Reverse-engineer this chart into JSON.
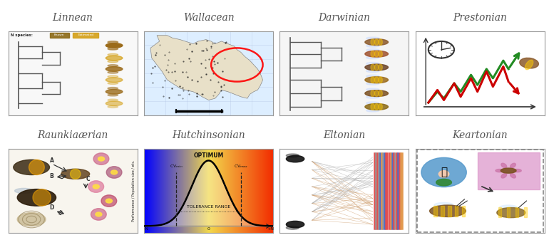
{
  "titles_top": [
    "Linnean",
    "Wallacean",
    "Darwinian",
    "Prestonian"
  ],
  "titles_bottom": [
    "Raunkiaærian",
    "Hutchinsonian",
    "Eltonian",
    "Keartonian"
  ],
  "bg_color": "#ffffff",
  "title_color": "#555555",
  "title_fontsize": 10,
  "fig_width": 7.7,
  "fig_height": 3.37,
  "panel_bg": [
    "#f5f5f5",
    "#e8f0f5",
    "#f5f5f5",
    "#ffffff",
    "#f8f5ee",
    "#f8f0e8",
    "#ffffff",
    "#ffffff"
  ],
  "border_color": "#999999"
}
